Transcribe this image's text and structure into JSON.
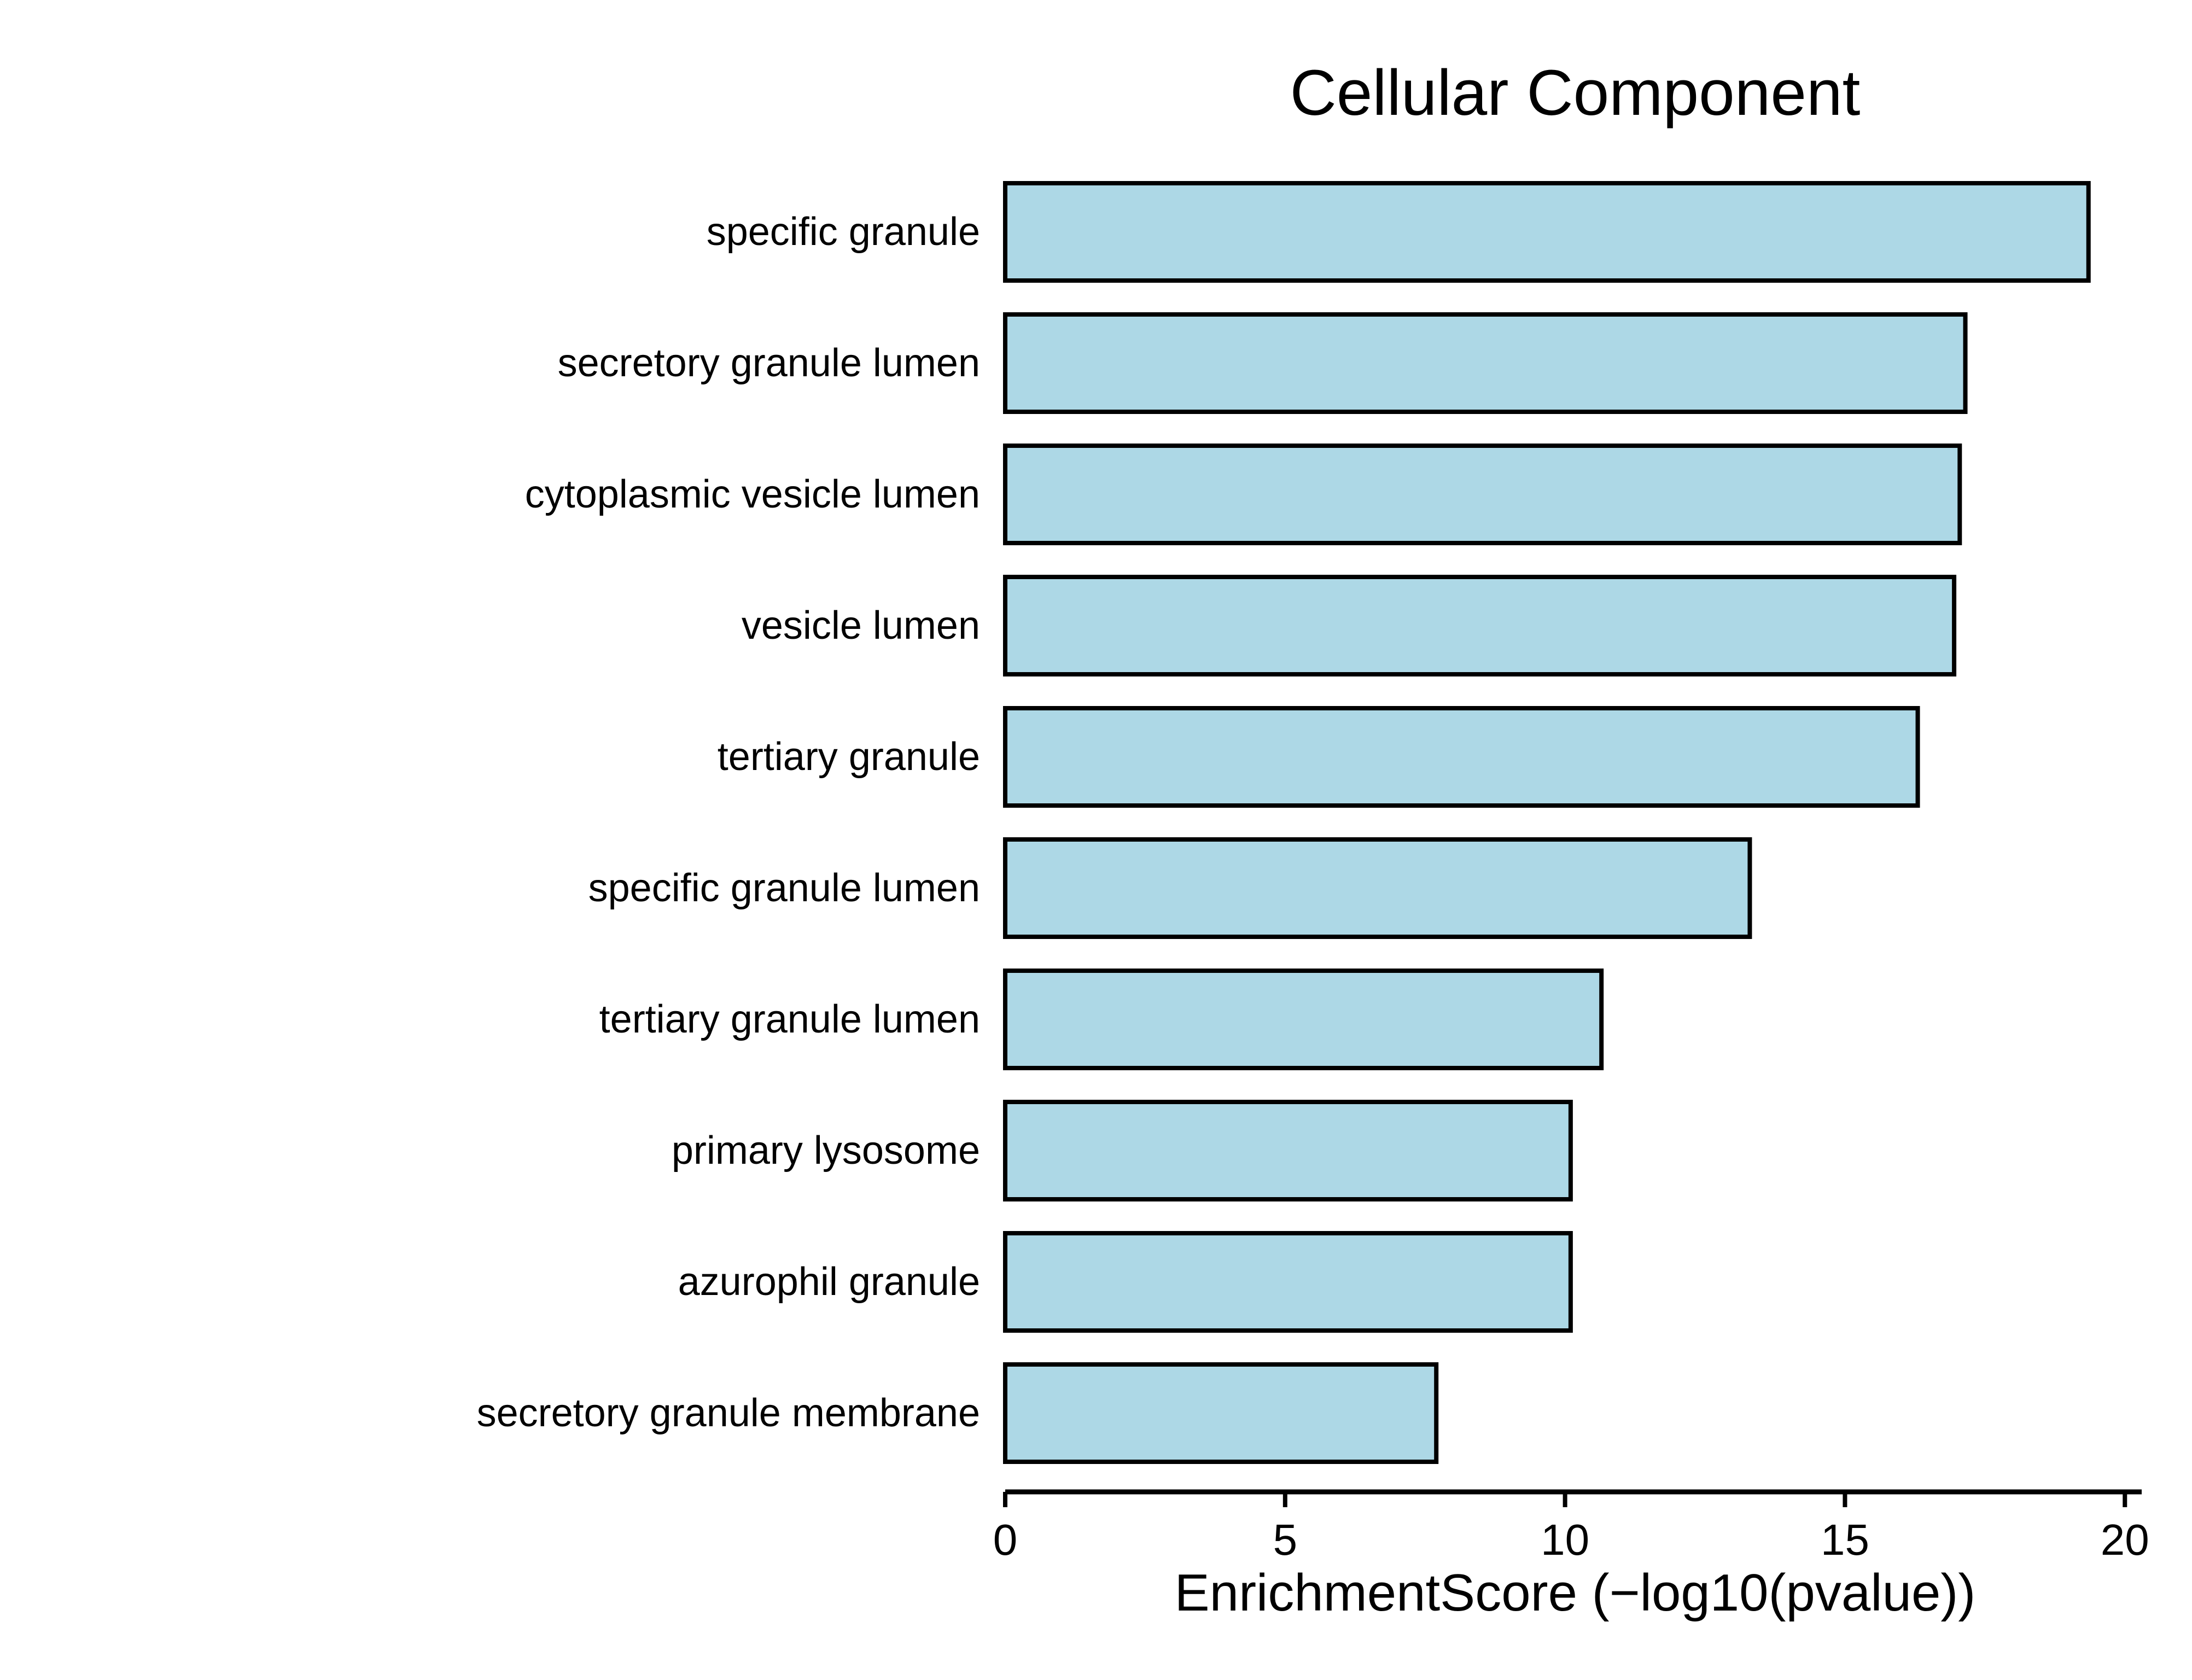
{
  "chart_data": {
    "type": "bar",
    "orientation": "horizontal",
    "title": "Cellular Component",
    "xlabel": "EnrichmentScore (−log10(pvalue))",
    "ylabel": "",
    "categories": [
      "specific granule",
      "secretory granule lumen",
      "cytoplasmic vesicle lumen",
      "vesicle lumen",
      "tertiary granule",
      "specific granule lumen",
      "tertiary granule lumen",
      "primary lysosome",
      "azurophil granule",
      "secretory granule membrane"
    ],
    "values": [
      19.35,
      17.15,
      17.05,
      16.95,
      16.3,
      13.3,
      10.65,
      10.1,
      10.1,
      7.7
    ],
    "xlim": [
      0,
      20.3
    ],
    "xticks": [
      0,
      5,
      10,
      15,
      20
    ],
    "grid": false,
    "legend": "none",
    "bar_color": "#add8e6",
    "bar_edge_color": "#000000"
  }
}
